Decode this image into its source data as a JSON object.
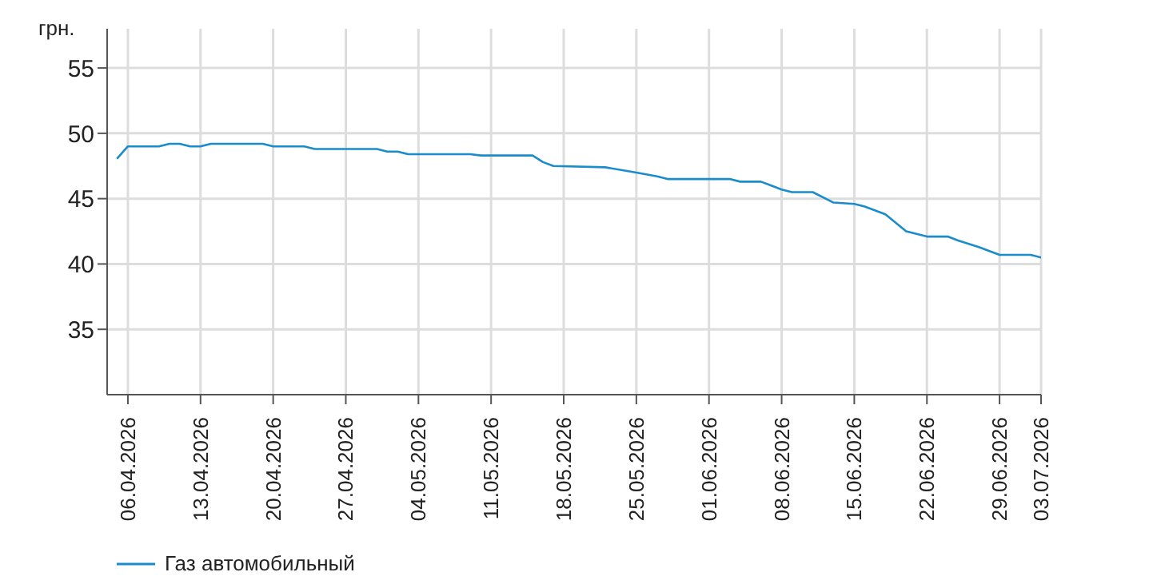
{
  "chart_data": {
    "type": "line",
    "ylabel": "грн.",
    "x": [
      "2026-04-05",
      "2026-04-06",
      "2026-04-09",
      "2026-04-10",
      "2026-04-11",
      "2026-04-12",
      "2026-04-13",
      "2026-04-14",
      "2026-04-19",
      "2026-04-20",
      "2026-04-23",
      "2026-04-24",
      "2026-04-30",
      "2026-05-01",
      "2026-05-02",
      "2026-05-03",
      "2026-05-09",
      "2026-05-10",
      "2026-05-15",
      "2026-05-16",
      "2026-05-17",
      "2026-05-22",
      "2026-05-25",
      "2026-05-27",
      "2026-05-28",
      "2026-06-03",
      "2026-06-04",
      "2026-06-06",
      "2026-06-07",
      "2026-06-08",
      "2026-06-09",
      "2026-06-11",
      "2026-06-13",
      "2026-06-15",
      "2026-06-16",
      "2026-06-18",
      "2026-06-20",
      "2026-06-22",
      "2026-06-24",
      "2026-06-25",
      "2026-06-27",
      "2026-06-29",
      "2026-07-02",
      "2026-07-03"
    ],
    "series": [
      {
        "name": "Газ автомобильный",
        "color": "#1a8ccc",
        "values": [
          48.1,
          49.0,
          49.0,
          49.2,
          49.2,
          49.0,
          49.0,
          49.2,
          49.2,
          49.0,
          49.0,
          48.8,
          48.8,
          48.6,
          48.6,
          48.4,
          48.4,
          48.3,
          48.3,
          47.8,
          47.5,
          47.4,
          47.0,
          46.7,
          46.5,
          46.5,
          46.3,
          46.3,
          46.0,
          45.7,
          45.5,
          45.5,
          44.7,
          44.6,
          44.4,
          43.8,
          42.5,
          42.1,
          42.1,
          41.8,
          41.3,
          40.7,
          40.7,
          40.5
        ]
      }
    ],
    "xlim": [
      "2026-04-04",
      "2026-07-03"
    ],
    "xticks": [
      {
        "value": "2026-04-06",
        "label": "06.04.2026"
      },
      {
        "value": "2026-04-13",
        "label": "13.04.2026"
      },
      {
        "value": "2026-04-20",
        "label": "20.04.2026"
      },
      {
        "value": "2026-04-27",
        "label": "27.04.2026"
      },
      {
        "value": "2026-05-04",
        "label": "04.05.2026"
      },
      {
        "value": "2026-05-11",
        "label": "11.05.2026"
      },
      {
        "value": "2026-05-18",
        "label": "18.05.2026"
      },
      {
        "value": "2026-05-25",
        "label": "25.05.2026"
      },
      {
        "value": "2026-06-01",
        "label": "01.06.2026"
      },
      {
        "value": "2026-06-08",
        "label": "08.06.2026"
      },
      {
        "value": "2026-06-15",
        "label": "15.06.2026"
      },
      {
        "value": "2026-06-22",
        "label": "22.06.2026"
      },
      {
        "value": "2026-06-29",
        "label": "29.06.2026"
      },
      {
        "value": "2026-07-03",
        "label": "03.07.2026"
      }
    ],
    "ylim": [
      30,
      58
    ],
    "yticks": [
      35,
      40,
      45,
      50,
      55
    ],
    "grid": true,
    "legend": "bottom left",
    "marker": "none",
    "line_style": "solid"
  }
}
